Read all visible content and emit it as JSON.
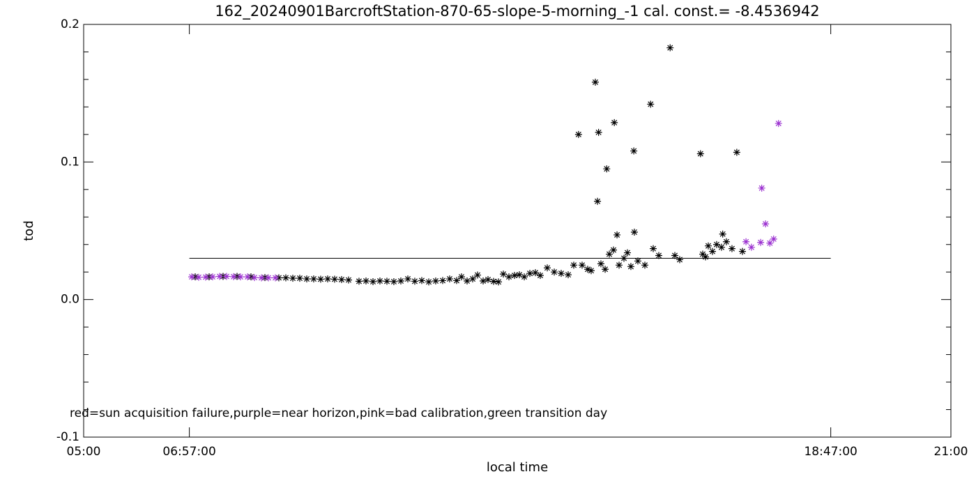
{
  "chart_data": {
    "type": "scatter",
    "title": "162_20240901BarcroftStation-870-65-slope-5-morning_-1 cal. const.= -8.4536942",
    "x_label": "local time",
    "y_label": "tod",
    "annotation": "red=sun acquisition failure,purple=near horizon,pink=bad calibration,green transition day",
    "xlim": [
      5,
      21
    ],
    "ylim": [
      -0.1,
      0.2
    ],
    "xticks": [
      {
        "value": 5,
        "label": "05:00"
      },
      {
        "value": 6.95,
        "label": "06:57:00"
      },
      {
        "value": 18.7833,
        "label": "18:47:00"
      },
      {
        "value": 21,
        "label": "21:00"
      }
    ],
    "yticks": [
      -0.1,
      {
        "value": 0,
        "label": "0.0"
      },
      0.1,
      0.2
    ],
    "reference_line": {
      "y": 0.03,
      "x": [
        6.95,
        18.7833
      ]
    },
    "series": [
      {
        "color": "#000000",
        "x": [
          7.058,
          7.315,
          7.572,
          7.83,
          8.087,
          8.344,
          8.601,
          8.73,
          8.859,
          8.987,
          9.116,
          9.244,
          9.373,
          9.502,
          9.63,
          9.759,
          9.887,
          10.08,
          10.209,
          10.338,
          10.466,
          10.595,
          10.723,
          10.852,
          10.981,
          11.109,
          11.238,
          11.367,
          11.495,
          11.624,
          11.752,
          11.881,
          11.971,
          12.074,
          12.177,
          12.267,
          12.37,
          12.46,
          12.563,
          12.653,
          12.743,
          12.846,
          12.949,
          13.039,
          13.129,
          13.232,
          13.334,
          13.424,
          13.553,
          13.682,
          13.81,
          13.939,
          14.042,
          14.196,
          14.299,
          14.363,
          14.543,
          14.621,
          14.698,
          14.775,
          14.878,
          14.968,
          15.032,
          15.096,
          15.225,
          15.354,
          15.508,
          15.611,
          15.907,
          15.997,
          16.421,
          16.473,
          16.524,
          16.601,
          16.678,
          16.768,
          16.858,
          16.961,
          17.154,
          14.13,
          14.44,
          14.5,
          14.48,
          14.65,
          14.79,
          15.15,
          15.46,
          15.82,
          16.38,
          17.05,
          14.84,
          15.16,
          16.79
        ],
        "values": [
          0.0165,
          0.0165,
          0.0168,
          0.0168,
          0.0165,
          0.016,
          0.0158,
          0.0158,
          0.0155,
          0.0155,
          0.015,
          0.015,
          0.0148,
          0.015,
          0.0148,
          0.0145,
          0.0142,
          0.0133,
          0.0135,
          0.013,
          0.0135,
          0.0133,
          0.013,
          0.0135,
          0.015,
          0.0133,
          0.0138,
          0.0128,
          0.0135,
          0.0138,
          0.015,
          0.0138,
          0.0165,
          0.0135,
          0.015,
          0.0178,
          0.0135,
          0.0145,
          0.0132,
          0.0128,
          0.0185,
          0.0165,
          0.0175,
          0.018,
          0.0165,
          0.019,
          0.0195,
          0.0175,
          0.023,
          0.02,
          0.019,
          0.018,
          0.025,
          0.025,
          0.022,
          0.021,
          0.026,
          0.022,
          0.033,
          0.036,
          0.025,
          0.03,
          0.034,
          0.024,
          0.028,
          0.025,
          0.037,
          0.032,
          0.032,
          0.029,
          0.033,
          0.031,
          0.039,
          0.035,
          0.04,
          0.038,
          0.042,
          0.037,
          0.035,
          0.12,
          0.158,
          0.1215,
          0.0714,
          0.095,
          0.1286,
          0.108,
          0.142,
          0.183,
          0.106,
          0.107,
          0.047,
          0.049,
          0.0476
        ]
      },
      {
        "color": "#9b30d0",
        "x": [
          6.994,
          7.122,
          7.251,
          7.379,
          7.508,
          7.637,
          7.765,
          7.894,
          8.023,
          8.151,
          8.28,
          8.408,
          8.537,
          17.22,
          17.32,
          17.49,
          17.51,
          17.58,
          17.66,
          17.73,
          17.82
        ],
        "values": [
          0.0165,
          0.0162,
          0.0163,
          0.0165,
          0.0168,
          0.0168,
          0.0166,
          0.0165,
          0.0165,
          0.016,
          0.0158,
          0.0158,
          0.0158,
          0.042,
          0.038,
          0.0415,
          0.081,
          0.055,
          0.041,
          0.044,
          0.128
        ]
      }
    ]
  }
}
